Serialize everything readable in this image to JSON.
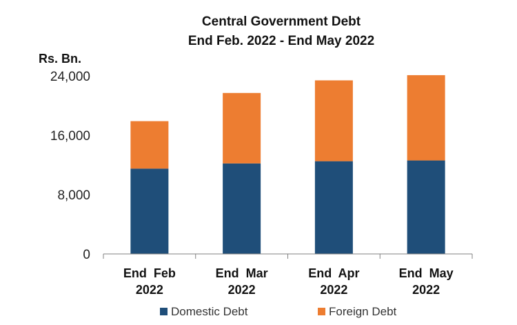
{
  "chart_data": {
    "type": "bar",
    "stacked": true,
    "title": "Central Government Debt",
    "subtitle": "End Feb. 2022 - End May 2022",
    "ylabel": "Rs. Bn.",
    "xlabel": "",
    "ylim": [
      0,
      24000
    ],
    "yticks": [
      0,
      8000,
      16000,
      24000
    ],
    "ytick_labels": [
      "0",
      "8,000",
      "16,000",
      "24,000"
    ],
    "categories": [
      [
        "End  Feb",
        "2022"
      ],
      [
        "End  Mar",
        "2022"
      ],
      [
        "End  Apr",
        "2022"
      ],
      [
        "End  May",
        "2022"
      ]
    ],
    "series": [
      {
        "name": "Domestic Debt",
        "color": "#1F4E79",
        "values": [
          11500,
          12200,
          12500,
          12600
        ]
      },
      {
        "name": "Foreign Debt",
        "color": "#ED7D31",
        "values": [
          6400,
          9500,
          10900,
          11500
        ]
      }
    ],
    "grid": false,
    "legend": "bottom"
  }
}
